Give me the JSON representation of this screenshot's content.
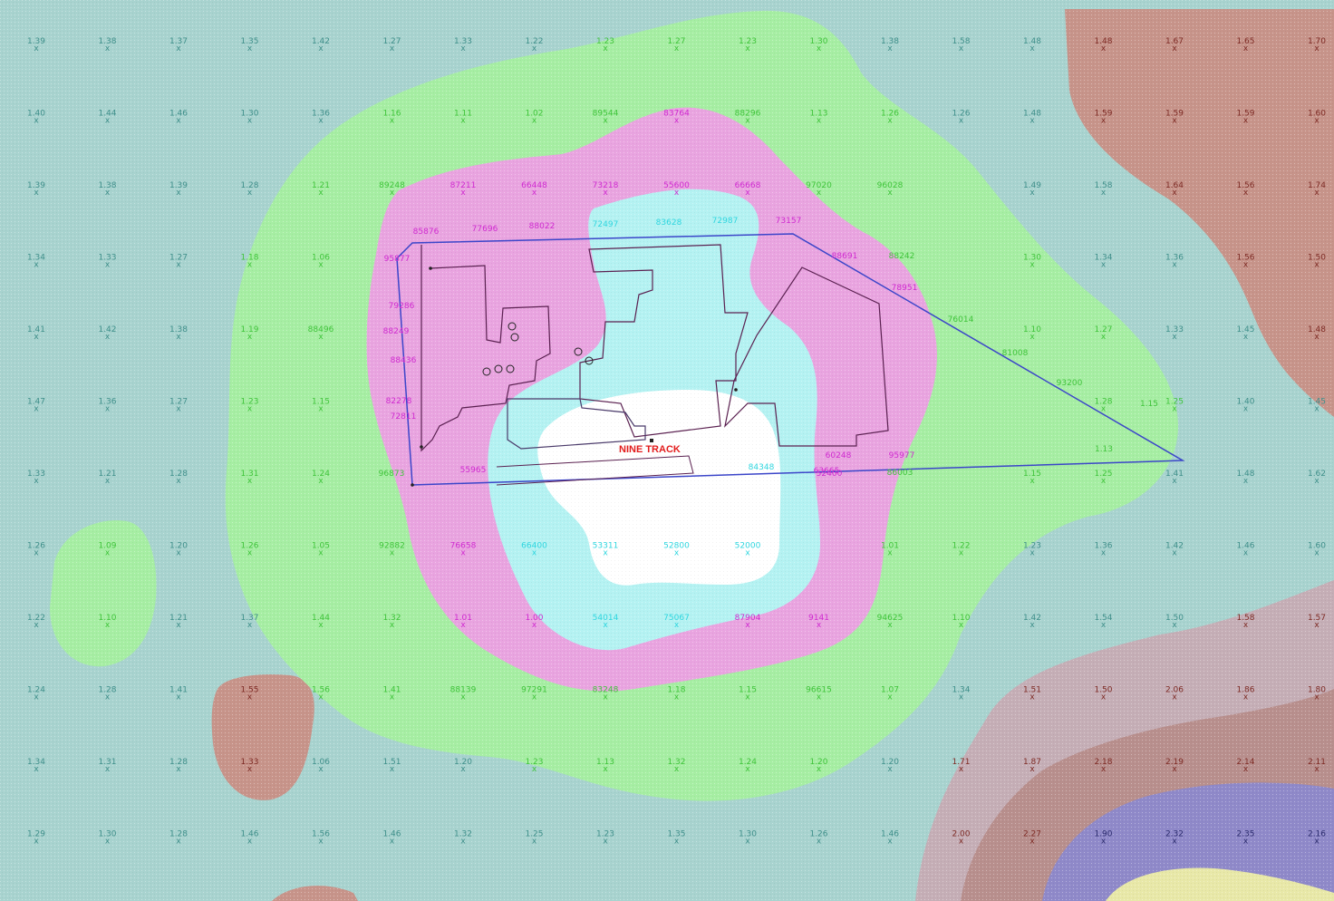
{
  "colors": {
    "background_teal": "#a8d3cf",
    "zone_green": "#a6eea3",
    "zone_magenta": "#e9a4e0",
    "zone_cyan": "#b4f2f2",
    "zone_center": "#ffffff",
    "zone_brown": "#c7948a",
    "zone_mauve": "#c5aeb6",
    "zone_purple": "#8f89c9",
    "zone_yellow": "#e8e8a8",
    "label_teal": "#3f8f8a",
    "label_green": "#3fc43a",
    "label_magenta": "#d02ad0",
    "label_cyan": "#2fd6df",
    "label_brown": "#7e2b25",
    "label_dark": "#2d2d6e",
    "boundary_blue": "#3b45c9",
    "building_outline": "#5a2050",
    "site_label": "#e21b1b"
  },
  "grid_rows": [
    [
      "1.39",
      "1.38",
      "1.37",
      "1.35",
      "1.42",
      "1.27",
      "1.33",
      "1.22",
      "1.23",
      "1.27",
      "1.23",
      "1.30",
      "1.38",
      "1.58",
      "1.48",
      "1.48",
      "1.67",
      "1.65",
      "1.70"
    ],
    [
      "1.40",
      "1.44",
      "1.46",
      "1.30",
      "1.36",
      "1.16",
      "1.11",
      "1.02",
      "89544",
      "83764",
      "88296",
      "1.13",
      "1.26",
      "1.26",
      "1.48",
      "1.59",
      "1.59",
      "1.59",
      "1.60"
    ],
    [
      "1.39",
      "1.38",
      "1.39",
      "1.28",
      "1.21",
      "89248",
      "87211",
      "66448",
      "73218",
      "55600",
      "66668",
      "97020",
      "96028",
      "",
      "1.49",
      "1.58",
      "1.64",
      "1.56",
      "1.74"
    ],
    [
      "1.34",
      "1.33",
      "1.27",
      "1.18",
      "1.06",
      "",
      "",
      "",
      "",
      "",
      "",
      "",
      "",
      "",
      "1.30",
      "1.34",
      "1.36",
      "1.56",
      "1.50"
    ],
    [
      "1.41",
      "1.42",
      "1.38",
      "1.19",
      "88496",
      "",
      "",
      "",
      "",
      "",
      "",
      "",
      "",
      "",
      "1.10",
      "1.27",
      "1.33",
      "1.45",
      "1.48"
    ],
    [
      "1.47",
      "1.36",
      "1.27",
      "1.23",
      "1.15",
      "",
      "",
      "",
      "",
      "",
      "",
      "",
      "",
      "",
      "",
      "1.28",
      "1.25",
      "1.40",
      "1.45"
    ],
    [
      "1.33",
      "1.21",
      "1.28",
      "1.31",
      "1.24",
      "",
      "",
      "",
      "",
      "",
      "",
      "",
      "",
      "",
      "1.15",
      "1.25",
      "1.41",
      "1.48",
      "1.62"
    ],
    [
      "1.26",
      "1.09",
      "1.20",
      "1.26",
      "1.05",
      "92882",
      "76658",
      "66400",
      "53311",
      "52800",
      "52000",
      "",
      "1.01",
      "1.22",
      "1.23",
      "1.36",
      "1.42",
      "1.46",
      "1.60"
    ],
    [
      "1.22",
      "1.10",
      "1.21",
      "1.37",
      "1.44",
      "1.32",
      "1.01",
      "1.00",
      "54014",
      "75067",
      "87904",
      "9141",
      "94625",
      "1.10",
      "1.42",
      "1.54",
      "1.50",
      "1.58",
      "1.57"
    ],
    [
      "1.24",
      "1.28",
      "1.41",
      "1.55",
      "1.56",
      "1.41",
      "88139",
      "97291",
      "83248",
      "1.18",
      "1.15",
      "96615",
      "1.07",
      "1.34",
      "1.51",
      "1.50",
      "2.06",
      "1.86",
      "1.80"
    ],
    [
      "1.34",
      "1.31",
      "1.28",
      "1.33",
      "1.06",
      "1.51",
      "1.20",
      "1.23",
      "1.13",
      "1.32",
      "1.24",
      "1.20",
      "1.20",
      "1.71",
      "1.87",
      "2.18",
      "2.19",
      "2.14",
      "2.11"
    ],
    [
      "1.29",
      "1.30",
      "1.28",
      "1.46",
      "1.56",
      "1.46",
      "1.32",
      "1.25",
      "1.23",
      "1.35",
      "1.30",
      "1.26",
      "1.46",
      "2.00",
      "2.27",
      "1.90",
      "2.32",
      "2.35",
      "2.16"
    ]
  ],
  "inner_labels": {
    "row4": [
      "85876",
      "77696",
      "88022",
      "72497",
      "83628",
      "72987",
      "73157"
    ],
    "row4b": [
      "95877",
      "88691",
      "88242",
      "78951",
      "76014"
    ],
    "row5": [
      "79286",
      "88249",
      "88436",
      "81008"
    ],
    "row6": [
      "82278",
      "72811",
      "93200"
    ],
    "row7": [
      "96873",
      "55965",
      "84348",
      "52400",
      "60248",
      "63665",
      "95977",
      "86003"
    ],
    "row8": [
      "1.15",
      "1.13"
    ]
  },
  "site": {
    "label": "NINE TRACK"
  }
}
